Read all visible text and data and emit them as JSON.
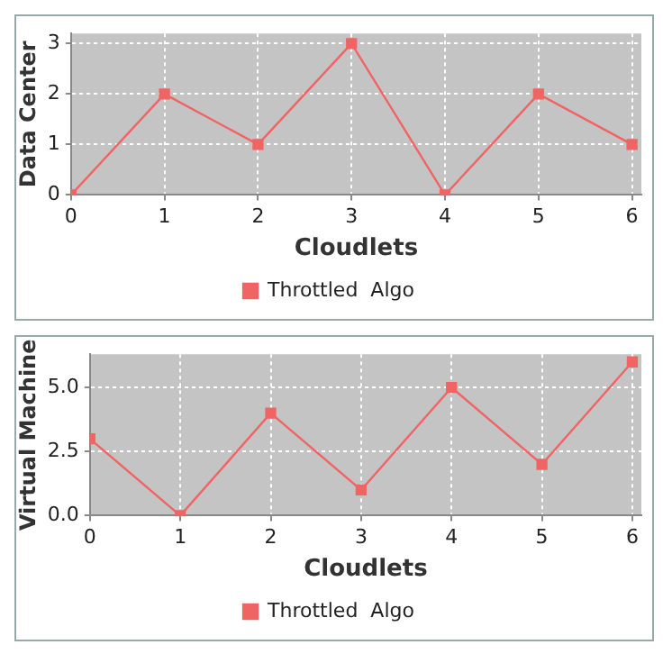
{
  "chart_data": [
    {
      "type": "line",
      "xlabel": "Cloudlets",
      "ylabel": "Data Center",
      "x": [
        0,
        1,
        2,
        3,
        4,
        5,
        6
      ],
      "series": [
        {
          "name": "Throttled  Algo",
          "color": "#f06464",
          "values": [
            0,
            2,
            1,
            3,
            0,
            2,
            1
          ]
        }
      ],
      "xlim": [
        0,
        6.1
      ],
      "xticks": [
        0,
        1,
        2,
        3,
        4,
        5,
        6
      ],
      "ylim": [
        0,
        3.2
      ],
      "yticks": [
        0,
        1,
        2,
        3
      ],
      "grid": true,
      "legend": "bottom",
      "marker": "square"
    },
    {
      "type": "line",
      "xlabel": "Cloudlets",
      "ylabel": "Virtual Machine",
      "x": [
        0,
        1,
        2,
        3,
        4,
        5,
        6
      ],
      "series": [
        {
          "name": "Throttled  Algo",
          "color": "#f06464",
          "values": [
            3,
            0,
            4,
            1,
            5,
            2,
            6
          ]
        }
      ],
      "xlim": [
        0,
        6.1
      ],
      "xticks": [
        0,
        1,
        2,
        3,
        4,
        5,
        6
      ],
      "ylim": [
        0,
        6.3
      ],
      "yticks": [
        {
          "value": 0,
          "label": "0.0"
        },
        {
          "value": 2.5,
          "label": "2.5"
        },
        {
          "value": 5,
          "label": "5.0"
        }
      ],
      "grid": true,
      "legend": "bottom",
      "marker": "square"
    }
  ]
}
